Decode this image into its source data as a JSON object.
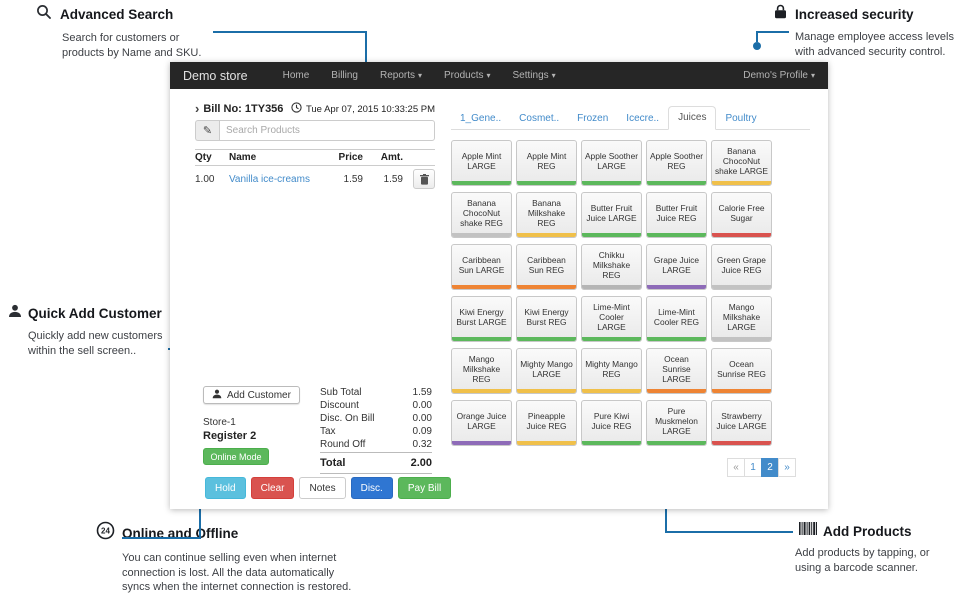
{
  "colors": {
    "accent_blue": "#428bca",
    "annotation_line": "#1b6ea8",
    "navbar_bg": "#262626",
    "success_green": "#5cb85c",
    "danger_red": "#d9534f",
    "info_teal": "#5bc0de",
    "primary_blue": "#2f76d2"
  },
  "icons": {
    "dropdown_caret": "▾",
    "pencil": "✎",
    "bill_caret": "›"
  },
  "annotations": {
    "advanced_search": {
      "title": "Advanced Search",
      "body": "Search for customers or\nproducts by Name and SKU."
    },
    "increased_security": {
      "title": "Increased security",
      "body": "Manage employee access levels\nwith advanced security control."
    },
    "quick_add_customer": {
      "title": "Quick Add Customer",
      "body": "Quickly add new customers\nwithin the sell screen.."
    },
    "online_offline": {
      "title": "Online and Offline",
      "body": "You can continue selling even when internet\nconnection is lost. All the data automatically\nsyncs when the internet connection is restored."
    },
    "add_products": {
      "title": "Add Products",
      "body": "Add products by tapping, or\nusing a barcode scanner."
    }
  },
  "app": {
    "title": "Demo store",
    "nav": [
      {
        "label": "Home",
        "dropdown": false
      },
      {
        "label": "Billing",
        "dropdown": false
      },
      {
        "label": "Reports",
        "dropdown": true
      },
      {
        "label": "Products",
        "dropdown": true
      },
      {
        "label": "Settings",
        "dropdown": true
      }
    ],
    "profile": "Demo's Profile"
  },
  "bill": {
    "bill_no": "Bill No: 1TY356",
    "datetime": "Tue Apr 07, 2015 10:33:25 PM",
    "search_placeholder": "Search Products",
    "table": {
      "headers": [
        "Qty",
        "Name",
        "Price",
        "Amt."
      ],
      "rows": [
        {
          "qty": "1.00",
          "name": "Vanilla ice-creams",
          "price": "1.59",
          "amt": "1.59"
        }
      ]
    },
    "add_customer": "Add Customer",
    "summary": [
      {
        "label": "Sub Total",
        "value": "1.59"
      },
      {
        "label": "Discount",
        "value": "0.00"
      },
      {
        "label": "Disc. On Bill",
        "value": "0.00"
      },
      {
        "label": "Tax",
        "value": "0.09"
      },
      {
        "label": "Round Off",
        "value": "0.32"
      }
    ],
    "store": "Store-1",
    "register": "Register 2",
    "online_mode": "Online Mode",
    "total_label": "Total",
    "total_value": "2.00",
    "actions": [
      {
        "label": "Hold",
        "type": "info"
      },
      {
        "label": "Clear",
        "type": "danger"
      },
      {
        "label": "Notes",
        "type": "default"
      },
      {
        "label": "Disc.",
        "type": "primary"
      },
      {
        "label": "Pay Bill",
        "type": "success"
      }
    ]
  },
  "products": {
    "tabs": [
      {
        "label": "1_Gene..",
        "active": false
      },
      {
        "label": "Cosmet..",
        "active": false
      },
      {
        "label": "Frozen",
        "active": false
      },
      {
        "label": "Icecre..",
        "active": false
      },
      {
        "label": "Juices",
        "active": true
      },
      {
        "label": "Poultry",
        "active": false
      }
    ],
    "tiles": [
      {
        "name": "Apple Mint LARGE",
        "color": "#5cb85c"
      },
      {
        "name": "Apple Mint REG",
        "color": "#5cb85c"
      },
      {
        "name": "Apple Soother LARGE",
        "color": "#5cb85c"
      },
      {
        "name": "Apple Soother REG",
        "color": "#5cb85c"
      },
      {
        "name": "Banana ChocoNut shake LARGE",
        "color": "#f0c04a"
      },
      {
        "name": "Banana ChocoNut shake REG",
        "color": "#c2c2c2"
      },
      {
        "name": "Banana Milkshake REG",
        "color": "#f0c04a"
      },
      {
        "name": "Butter Fruit Juice LARGE",
        "color": "#5cb85c"
      },
      {
        "name": "Butter Fruit Juice REG",
        "color": "#5cb85c"
      },
      {
        "name": "Calorie Free Sugar",
        "color": "#d9534f"
      },
      {
        "name": "Caribbean Sun LARGE",
        "color": "#ee8434"
      },
      {
        "name": "Caribbean Sun REG",
        "color": "#ee8434"
      },
      {
        "name": "Chikku Milkshake REG",
        "color": "#b5b5b5"
      },
      {
        "name": "Grape Juice LARGE",
        "color": "#8e6bb8"
      },
      {
        "name": "Green Grape Juice REG",
        "color": "#c2c2c2"
      },
      {
        "name": "Kiwi Energy Burst LARGE",
        "color": "#5cb85c"
      },
      {
        "name": "Kiwi Energy Burst REG",
        "color": "#5cb85c"
      },
      {
        "name": "Lime-Mint Cooler LARGE",
        "color": "#5cb85c"
      },
      {
        "name": "Lime-Mint Cooler REG",
        "color": "#5cb85c"
      },
      {
        "name": "Mango Milkshake LARGE",
        "color": "#c2c2c2"
      },
      {
        "name": "Mango Milkshake REG",
        "color": "#f0c04a"
      },
      {
        "name": "Mighty Mango LARGE",
        "color": "#f0c04a"
      },
      {
        "name": "Mighty Mango REG",
        "color": "#f0c04a"
      },
      {
        "name": "Ocean Sunrise LARGE",
        "color": "#ee8434"
      },
      {
        "name": "Ocean Sunrise REG",
        "color": "#ee8434"
      },
      {
        "name": "Orange Juice LARGE",
        "color": "#8e6bb8"
      },
      {
        "name": "Pineapple Juice REG",
        "color": "#f0c04a"
      },
      {
        "name": "Pure Kiwi Juice REG",
        "color": "#5cb85c"
      },
      {
        "name": "Pure Muskmelon LARGE",
        "color": "#5cb85c"
      },
      {
        "name": "Strawberry Juice LARGE",
        "color": "#d9534f"
      }
    ],
    "pagination": [
      {
        "label": "«",
        "active": false,
        "disabled": true
      },
      {
        "label": "1",
        "active": false,
        "disabled": false
      },
      {
        "label": "2",
        "active": true,
        "disabled": false
      },
      {
        "label": "»",
        "active": false,
        "disabled": false
      }
    ]
  }
}
